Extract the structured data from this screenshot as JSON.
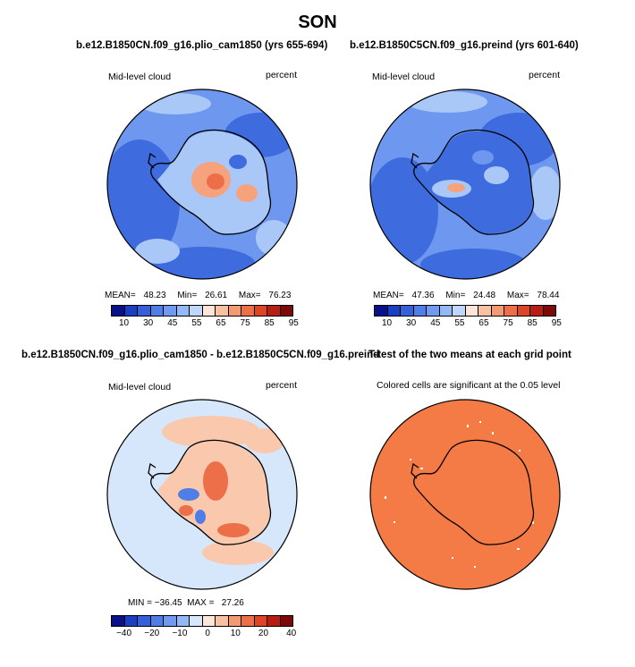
{
  "figure": {
    "title": "SON",
    "panels": [
      {
        "title": "b.e12.B1850CN.f09_g16.plio_cam1850 (yrs 655-694)",
        "left_label": "Mid-level cloud",
        "right_label": "percent",
        "stats": {
          "mean_label": "MEAN=",
          "mean": "48.23",
          "min_label": "Min=",
          "min": "26.61",
          "max_label": "Max=",
          "max": "76.23"
        }
      },
      {
        "title": "b.e12.B1850C5CN.f09_g16.preind (yrs 601-640)",
        "left_label": "Mid-level cloud",
        "right_label": "percent",
        "stats": {
          "mean_label": "MEAN=",
          "mean": "47.36",
          "min_label": "Min=",
          "min": "24.48",
          "max_label": "Max=",
          "max": "78.44"
        }
      },
      {
        "title": "b.e12.B1850CN.f09_g16.plio_cam1850 - b.e12.B1850C5CN.f09_g16.preind",
        "left_label": "Mid-level cloud",
        "right_label": "percent",
        "minmax": "MIN = −36.45  MAX =   27.26"
      },
      {
        "title": "T-test of the two means at each grid point",
        "subtitle": "Colored cells are significant at the 0.05 level"
      }
    ],
    "colorbars": {
      "abs": {
        "colors": [
          "#08108a",
          "#1b3fc2",
          "#3560d8",
          "#4f7ee6",
          "#6f9af0",
          "#93b8f6",
          "#bed7fb",
          "#fde6d8",
          "#f9c1a2",
          "#f49a73",
          "#ec6f49",
          "#dd4526",
          "#b91d12",
          "#7c0a08"
        ],
        "ticks": [
          "10",
          "30",
          "45",
          "55",
          "65",
          "75",
          "85",
          "95"
        ]
      },
      "diff": {
        "colors": [
          "#08108a",
          "#1b3fc2",
          "#3560d8",
          "#4f7ee6",
          "#6f9af0",
          "#93b8f6",
          "#d6e6fb",
          "#fde6d8",
          "#f9c1a2",
          "#f49a73",
          "#ec6f49",
          "#dd4526",
          "#b91d12",
          "#7c0a08"
        ],
        "ticks": [
          "−40",
          "−20",
          "−10",
          "0",
          "10",
          "20",
          "40"
        ]
      }
    },
    "map_colors": {
      "abs_ocean": "#6e98ef",
      "abs_ocean_dark": "#3e6bde",
      "abs_light": "#a9c8f7",
      "abs_warm": "#f6a27d",
      "abs_warm_strong": "#ec6f49",
      "diff_base": "#d6e6fb",
      "diff_warm": "#f9c8ad",
      "diff_red": "#ec6f49",
      "diff_blue": "#4f7ee6",
      "ttest_fill": "#f47a46",
      "coast": "#000000"
    }
  }
}
